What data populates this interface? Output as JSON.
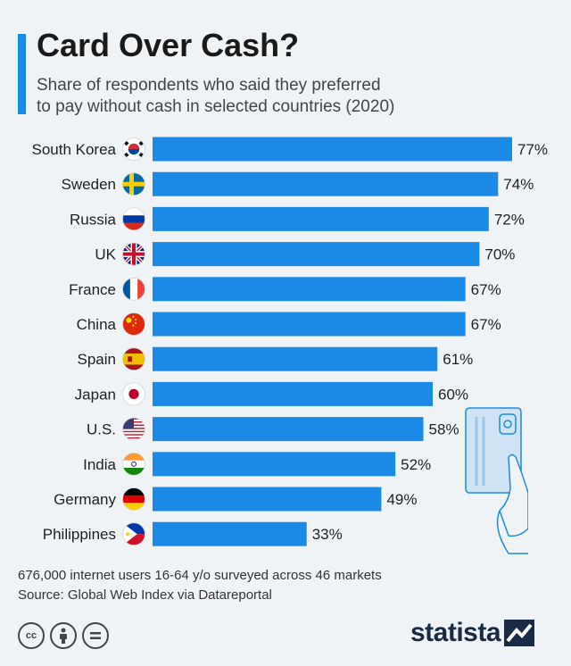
{
  "header": {
    "title": "Card Over Cash?",
    "subtitle_line1": "Share of respondents who said they preferred",
    "subtitle_line2": "to pay without cash in selected countries (2020)"
  },
  "chart_data": {
    "type": "bar",
    "orientation": "horizontal",
    "title": "Card Over Cash?",
    "subtitle": "Share of respondents who said they preferred to pay without cash in selected countries (2020)",
    "categories": [
      "South Korea",
      "Sweden",
      "Russia",
      "UK",
      "France",
      "China",
      "Spain",
      "Japan",
      "U.S.",
      "India",
      "Germany",
      "Philippines"
    ],
    "values": [
      77,
      74,
      72,
      70,
      67,
      67,
      61,
      60,
      58,
      52,
      49,
      33
    ],
    "value_labels": [
      "77%",
      "74%",
      "72%",
      "70%",
      "67%",
      "67%",
      "61%",
      "60%",
      "58%",
      "52%",
      "49%",
      "33%"
    ],
    "unit": "%",
    "xlim": [
      0,
      77
    ],
    "bar_color": "#1b8ae6",
    "grid": false,
    "legend": "none"
  },
  "footer": {
    "note": "676,000 internet users 16-64 y/o surveyed across 46 markets",
    "source": "Source: Global Web Index via Datareportal",
    "brand": "statista",
    "license_icons": [
      "cc-icon",
      "attribution-icon",
      "no-derivatives-icon"
    ]
  },
  "colors": {
    "accent": "#1b8ae6",
    "background": "#f0f3f6",
    "brand": "#1a2a44"
  }
}
